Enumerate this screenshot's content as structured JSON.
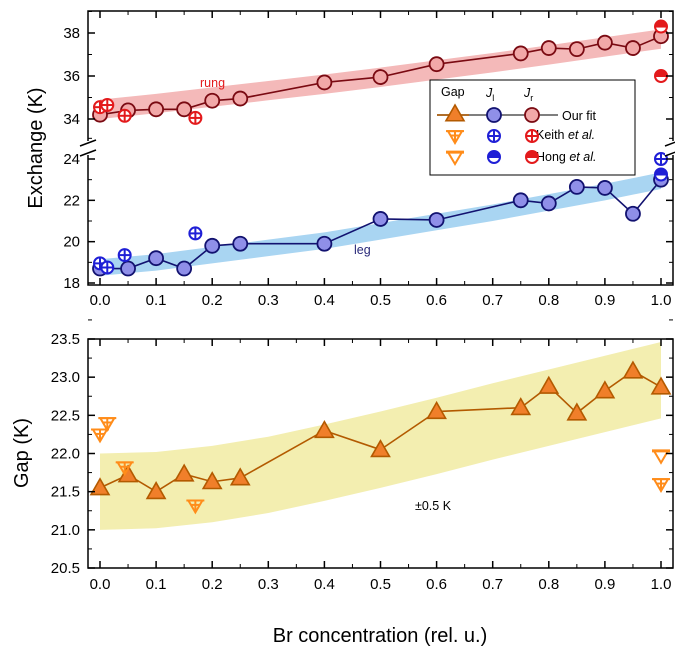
{
  "chart_data": [
    {
      "type": "line",
      "panel": "top",
      "ylabel": "Exchange (K)",
      "xlim": [
        -0.02,
        1.02
      ],
      "x_ticks": [
        "0.0",
        "0.1",
        "0.2",
        "0.3",
        "0.4",
        "0.5",
        "0.6",
        "0.7",
        "0.8",
        "0.9",
        "1.0"
      ],
      "y_ticks_upper": [
        "34",
        "36",
        "38"
      ],
      "y_ticks_lower": [
        "18",
        "20",
        "22",
        "24"
      ],
      "y_axis_break": true,
      "grid": false,
      "legend_position": "upper-right, inside",
      "legend": {
        "col_headers": [
          "Gap",
          "J",
          "J"
        ],
        "col_subscripts": [
          "",
          "l",
          "r"
        ],
        "rows": [
          {
            "label": "Our fit"
          },
          {
            "label_prefix": "Keith ",
            "label_italic": "et al."
          },
          {
            "label_prefix": "Hong ",
            "label_italic": "et al."
          }
        ]
      },
      "annotations": [
        {
          "text": "rung",
          "color": "#e31a1c"
        },
        {
          "text": "leg",
          "color": "#2a2a7a"
        }
      ],
      "colors": {
        "rung": "#e31a1c",
        "rung_line": "#7a0a12",
        "rung_fill": "#f2a8a8",
        "rung_band": "#f4b9b9",
        "leg": "#1f1fd6",
        "leg_line": "#121270",
        "leg_fill": "#8f8fe8",
        "leg_band": "#a9d5f2"
      },
      "series": [
        {
          "name": "Our fit",
          "kind": "rung",
          "x": [
            0.0,
            0.05,
            0.1,
            0.15,
            0.2,
            0.25,
            0.4,
            0.5,
            0.6,
            0.75,
            0.8,
            0.85,
            0.9,
            0.95,
            1.0
          ],
          "y": [
            34.2,
            34.4,
            34.45,
            34.45,
            34.85,
            34.95,
            35.7,
            35.95,
            36.55,
            37.05,
            37.3,
            37.25,
            37.55,
            37.3,
            37.85
          ]
        },
        {
          "name": "Our fit",
          "kind": "leg",
          "x": [
            0.0,
            0.05,
            0.1,
            0.15,
            0.2,
            0.25,
            0.4,
            0.5,
            0.6,
            0.75,
            0.8,
            0.85,
            0.9,
            0.95,
            1.0
          ],
          "y": [
            18.7,
            18.7,
            19.2,
            18.7,
            19.8,
            19.9,
            19.9,
            21.1,
            21.05,
            22.0,
            21.85,
            22.65,
            22.6,
            21.35,
            23.0
          ]
        },
        {
          "name": "Keith et al.",
          "kind": "rung",
          "x": [
            0.0,
            0.013,
            0.044,
            0.17
          ],
          "y": [
            34.55,
            34.65,
            34.15,
            34.05
          ]
        },
        {
          "name": "Keith et al.",
          "kind": "leg",
          "x": [
            0.0,
            0.013,
            0.044,
            0.17,
            1.0
          ],
          "y": [
            18.95,
            18.75,
            19.35,
            20.4,
            24.0
          ]
        },
        {
          "name": "Hong et al.",
          "kind": "rung",
          "x": [
            1.0,
            1.0
          ],
          "y": [
            38.3,
            36.0
          ]
        },
        {
          "name": "Hong et al.",
          "kind": "leg",
          "x": [
            1.0
          ],
          "y": [
            23.25
          ]
        }
      ],
      "bands": [
        {
          "kind": "rung",
          "x": [
            0.0,
            0.1,
            0.2,
            0.3,
            0.4,
            0.5,
            0.6,
            0.7,
            0.8,
            0.9,
            1.0
          ],
          "center": [
            34.45,
            34.72,
            35.02,
            35.32,
            35.62,
            35.94,
            36.28,
            36.62,
            36.98,
            37.35,
            37.72
          ],
          "half_width": 0.45
        },
        {
          "kind": "leg",
          "x": [
            0.0,
            0.1,
            0.2,
            0.3,
            0.4,
            0.5,
            0.6,
            0.7,
            0.8,
            0.9,
            1.0
          ],
          "center": [
            18.75,
            19.0,
            19.35,
            19.7,
            20.05,
            20.5,
            20.95,
            21.4,
            21.9,
            22.4,
            22.95
          ],
          "half_width": 0.4
        }
      ]
    },
    {
      "type": "line",
      "panel": "bottom",
      "xlabel": "Br concentration (rel. u.)",
      "ylabel": "Gap (K)",
      "xlim": [
        -0.02,
        1.02
      ],
      "ylim": [
        20.5,
        23.5
      ],
      "x_ticks": [
        "0.0",
        "0.1",
        "0.2",
        "0.3",
        "0.4",
        "0.5",
        "0.6",
        "0.7",
        "0.8",
        "0.9",
        "1.0"
      ],
      "y_ticks": [
        "20.5",
        "21.0",
        "21.5",
        "22.0",
        "22.5",
        "23.0",
        "23.5"
      ],
      "grid": false,
      "annotations": [
        {
          "text": "±0.5 K"
        }
      ],
      "colors": {
        "gap": "#ff8c1a",
        "gap_line": "#b35a00",
        "gap_fill": "#f07f2a",
        "band": "#f3eeb0"
      },
      "series": [
        {
          "name": "Gap",
          "marker": "up-triangle",
          "x": [
            0.0,
            0.05,
            0.1,
            0.15,
            0.2,
            0.25,
            0.4,
            0.5,
            0.6,
            0.75,
            0.8,
            0.85,
            0.9,
            0.95,
            1.0
          ],
          "y": [
            21.55,
            21.72,
            21.5,
            21.73,
            21.63,
            21.68,
            22.3,
            22.05,
            22.55,
            22.6,
            22.88,
            22.53,
            22.82,
            23.08,
            22.87
          ]
        },
        {
          "name": "Keith et al.",
          "marker": "down-triangle-plus",
          "x": [
            0.0,
            0.013,
            0.044,
            0.17,
            1.0
          ],
          "y": [
            22.25,
            22.4,
            21.82,
            21.32,
            21.6
          ]
        },
        {
          "name": "Hong et al.",
          "marker": "down-triangle-bar",
          "x": [
            1.0
          ],
          "y": [
            21.97
          ]
        }
      ],
      "bands": [
        {
          "x": [
            0.0,
            0.1,
            0.2,
            0.3,
            0.4,
            0.5,
            0.6,
            0.7,
            0.8,
            0.9,
            1.0
          ],
          "center": [
            21.5,
            21.52,
            21.6,
            21.72,
            21.88,
            22.05,
            22.23,
            22.42,
            22.6,
            22.78,
            22.96
          ],
          "half_width": 0.5
        }
      ]
    }
  ]
}
